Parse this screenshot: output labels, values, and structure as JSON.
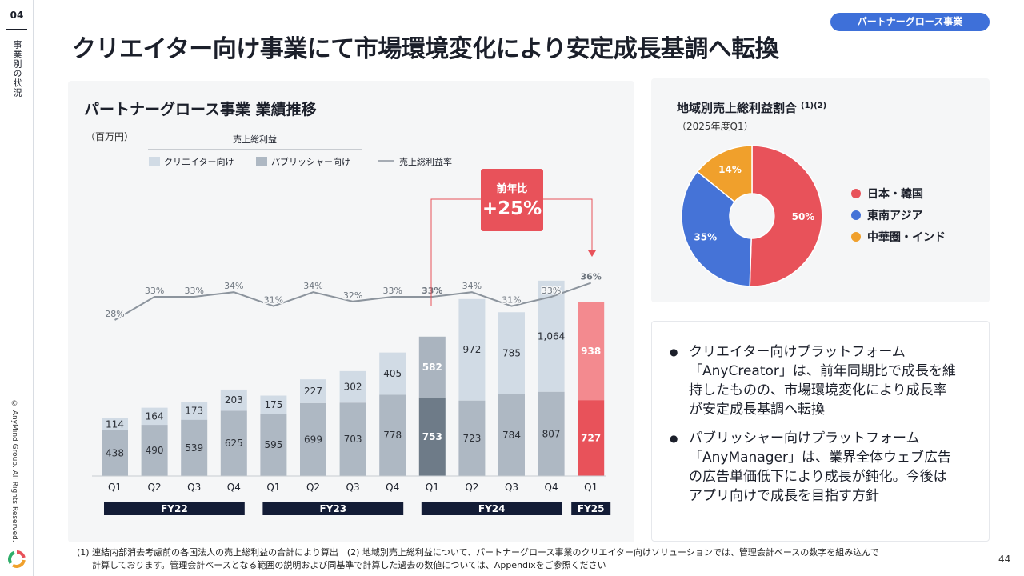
{
  "header": {
    "page_number": "04",
    "section_label": "事業別の状況",
    "segment_pill": "パートナーグロース事業",
    "title": "クリエイター向け事業にて市場環境変化により安定成長基調へ転換",
    "copyright": "© AnyMind Group. All Rights Reserved."
  },
  "colors": {
    "creator": "#d1dbe5",
    "publisher": "#aeb8c3",
    "highlight_fy24q1_creator": "#aab4bf",
    "highlight_fy24q1_publisher": "#6e7b88",
    "fy25_creator": "#f38a8f",
    "fy25_publisher": "#e8525a",
    "line": "#8c949d",
    "fiscal_band": "#131c36",
    "callout": "#e8525a",
    "pill": "#3e70d9",
    "pie_japan_korea": "#e8525a",
    "pie_sea": "#4573d7",
    "pie_china_india": "#f0a02c"
  },
  "chart_data": [
    {
      "type": "bar",
      "title": "パートナーグロース事業 業績推移",
      "unit_label": "（百万円）",
      "legend_group_label": "売上総利益",
      "legend": [
        "クリエイター向け",
        "パブリッシャー向け",
        "売上総利益率"
      ],
      "categories": [
        "Q1",
        "Q2",
        "Q3",
        "Q4",
        "Q1",
        "Q2",
        "Q3",
        "Q4",
        "Q1",
        "Q2",
        "Q3",
        "Q4",
        "Q1"
      ],
      "fiscal_years": [
        {
          "label": "FY22",
          "quarters": 4
        },
        {
          "label": "FY23",
          "quarters": 4
        },
        {
          "label": "FY24",
          "quarters": 4
        },
        {
          "label": "FY25",
          "quarters": 1
        }
      ],
      "stacked": true,
      "series": [
        {
          "name": "パブリッシャー向け",
          "values": [
            438,
            490,
            539,
            625,
            595,
            699,
            703,
            778,
            753,
            723,
            784,
            807,
            727
          ]
        },
        {
          "name": "クリエイター向け",
          "values": [
            114,
            164,
            173,
            203,
            175,
            227,
            302,
            405,
            582,
            972,
            785,
            1064,
            938
          ]
        }
      ],
      "line_series": {
        "name": "売上総利益率",
        "values": [
          28,
          33,
          33,
          34,
          31,
          34,
          32,
          33,
          33,
          34,
          31,
          33,
          36
        ],
        "labels": [
          "28%",
          "33%",
          "33%",
          "34%",
          "31%",
          "34%",
          "32%",
          "33%",
          "33%",
          "34%",
          "31%",
          "33%",
          "36%"
        ]
      },
      "callout": {
        "label": "前年比",
        "value": "+25%"
      }
    },
    {
      "type": "pie",
      "title": "地域別売上総利益割合",
      "title_superscript": "(1)(2)",
      "subtitle": "（2025年度Q1）",
      "slices": [
        {
          "label": "日本・韓国",
          "value": 50,
          "display": "50%"
        },
        {
          "label": "東南アジア",
          "value": 35,
          "display": "35%"
        },
        {
          "label": "中華圏・インド",
          "value": 14,
          "display": "14%"
        }
      ]
    }
  ],
  "bullets": [
    "クリエイター向けプラットフォーム「AnyCreator」は、前年同期比で成長を維持したものの、市場環境変化により成長率が安定成長基調へ転換",
    "パブリッシャー向けプラットフォーム「AnyManager」は、業界全体ウェブ広告の広告単価低下により成長が鈍化。今後はアプリ向けで成長を目指す方針"
  ],
  "footnote": {
    "line1": "(1) 連結内部消去考慮前の各国法人の売上総利益の合計により算出　(2) 地域別売上総利益について、パートナーグロース事業のクリエイター向けソリューションでは、管理会計ベースの数字を組み込んで",
    "line2": "計算しております。管理会計ベースとなる範囲の説明および同基準で計算した過去の数値については、Appendixをご参照ください"
  },
  "page_number_bottom": "44"
}
